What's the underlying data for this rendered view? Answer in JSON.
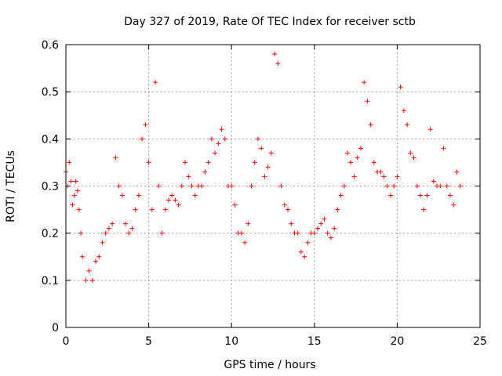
{
  "chart_data": {
    "type": "scatter",
    "title": "Day 327 of 2019, Rate Of TEC Index for receiver sctb",
    "xlabel": "GPS time / hours",
    "ylabel": "ROTI / TECUs",
    "xlim": [
      0,
      25
    ],
    "ylim": [
      0,
      0.6
    ],
    "xticks": [
      0,
      5,
      10,
      15,
      20,
      25
    ],
    "yticks": [
      0,
      0.1,
      0.2,
      0.3,
      0.4,
      0.5,
      0.6
    ],
    "grid": true,
    "marker": "+",
    "color": "#ff0000",
    "series": [
      {
        "name": "ROTI",
        "x": [
          0.0,
          0.1,
          0.2,
          0.3,
          0.4,
          0.5,
          0.6,
          0.7,
          0.8,
          0.9,
          1.0,
          1.2,
          1.4,
          1.6,
          1.8,
          2.0,
          2.2,
          2.4,
          2.6,
          2.8,
          3.0,
          3.2,
          3.4,
          3.6,
          3.8,
          4.0,
          4.2,
          4.4,
          4.6,
          4.8,
          5.0,
          5.2,
          5.4,
          5.6,
          5.8,
          6.0,
          6.2,
          6.4,
          6.6,
          6.8,
          7.0,
          7.2,
          7.4,
          7.6,
          7.8,
          8.0,
          8.2,
          8.4,
          8.6,
          8.8,
          9.0,
          9.2,
          9.4,
          9.6,
          9.8,
          10.0,
          10.2,
          10.4,
          10.6,
          10.8,
          11.0,
          11.2,
          11.4,
          11.6,
          11.8,
          12.0,
          12.2,
          12.4,
          12.6,
          12.8,
          13.0,
          13.2,
          13.4,
          13.6,
          13.8,
          14.0,
          14.2,
          14.4,
          14.6,
          14.8,
          15.0,
          15.2,
          15.4,
          15.6,
          15.8,
          16.0,
          16.2,
          16.4,
          16.6,
          16.8,
          17.0,
          17.2,
          17.4,
          17.6,
          17.8,
          18.0,
          18.2,
          18.4,
          18.6,
          18.8,
          19.0,
          19.2,
          19.4,
          19.6,
          19.8,
          20.0,
          20.2,
          20.4,
          20.6,
          20.8,
          21.0,
          21.2,
          21.4,
          21.6,
          21.8,
          22.0,
          22.2,
          22.4,
          22.6,
          22.8,
          23.0,
          23.2,
          23.4,
          23.6,
          23.8
        ],
        "y": [
          0.33,
          0.3,
          0.35,
          0.31,
          0.26,
          0.28,
          0.31,
          0.29,
          0.25,
          0.2,
          0.15,
          0.1,
          0.12,
          0.1,
          0.14,
          0.15,
          0.18,
          0.2,
          0.21,
          0.22,
          0.36,
          0.3,
          0.28,
          0.22,
          0.2,
          0.21,
          0.25,
          0.28,
          0.4,
          0.43,
          0.35,
          0.25,
          0.52,
          0.3,
          0.2,
          0.25,
          0.27,
          0.28,
          0.27,
          0.26,
          0.3,
          0.35,
          0.32,
          0.3,
          0.28,
          0.3,
          0.3,
          0.33,
          0.35,
          0.4,
          0.37,
          0.39,
          0.42,
          0.4,
          0.3,
          0.3,
          0.26,
          0.2,
          0.2,
          0.18,
          0.22,
          0.3,
          0.35,
          0.4,
          0.38,
          0.32,
          0.34,
          0.37,
          0.58,
          0.56,
          0.3,
          0.26,
          0.25,
          0.22,
          0.2,
          0.2,
          0.16,
          0.15,
          0.18,
          0.2,
          0.2,
          0.21,
          0.22,
          0.23,
          0.2,
          0.19,
          0.21,
          0.25,
          0.28,
          0.3,
          0.37,
          0.35,
          0.32,
          0.36,
          0.38,
          0.52,
          0.48,
          0.43,
          0.35,
          0.33,
          0.33,
          0.32,
          0.3,
          0.28,
          0.3,
          0.32,
          0.51,
          0.46,
          0.43,
          0.37,
          0.36,
          0.3,
          0.28,
          0.25,
          0.28,
          0.42,
          0.31,
          0.3,
          0.3,
          0.38,
          0.3,
          0.28,
          0.26,
          0.33,
          0.3
        ]
      }
    ]
  }
}
